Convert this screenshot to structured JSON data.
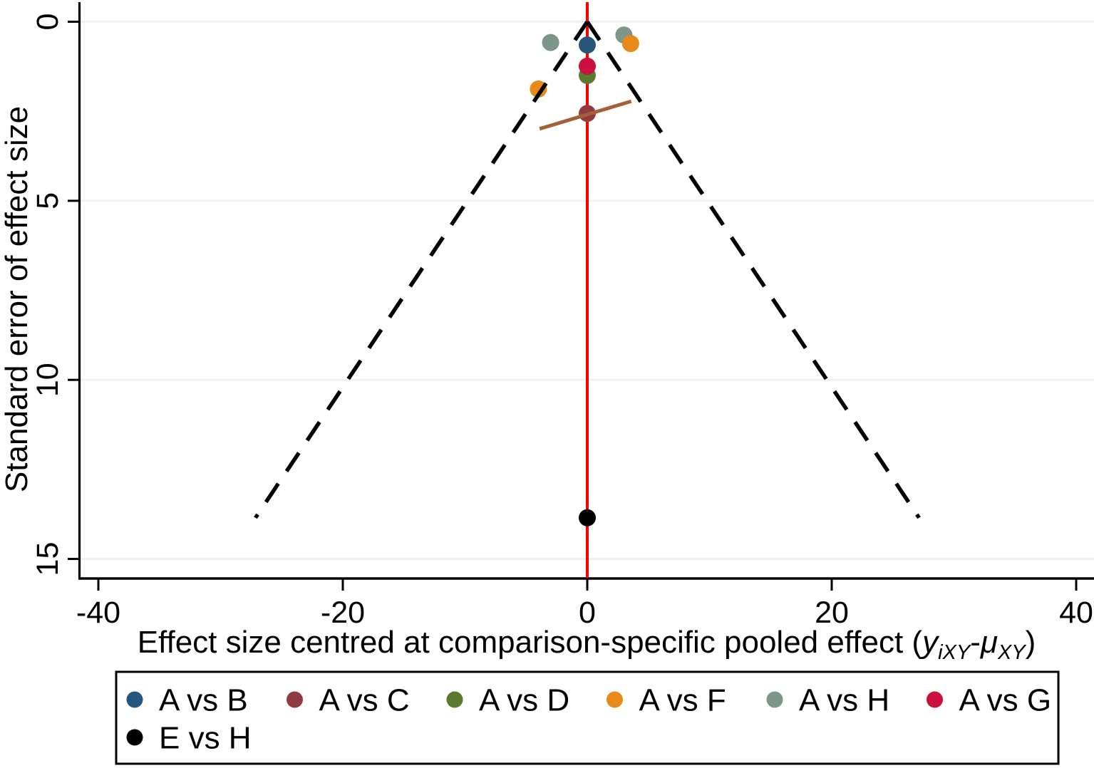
{
  "figure": {
    "kind": "comparison-adjusted funnel plot",
    "background": "#ffffff"
  },
  "chart_data": {
    "type": "scatter",
    "title": "",
    "ylabel": "Standard error of effect size",
    "xlabel_plain": "Effect size centred at comparison-specific pooled effect (yiXY-μXY)",
    "xlabel_parts": {
      "prefix": "Effect size centred at comparison-specific pooled effect (",
      "var1": "y",
      "sub1": "iXY",
      "op": "-",
      "var2": "μ",
      "sub2": "XY",
      "suffix": ")"
    },
    "x_ticks": [
      -40,
      -20,
      0,
      20,
      40
    ],
    "y_ticks": [
      0,
      5,
      10,
      15
    ],
    "xlim": [
      -41.5,
      41.5
    ],
    "ylim": [
      0,
      15.6
    ],
    "y_axis_reversed": true,
    "grid": "horizontal",
    "gridline_color": "#E9F1F3",
    "axis_color": "#000000",
    "series": [
      {
        "name": "A vs B",
        "color": "#26567C",
        "points": [
          {
            "x": 0,
            "se": 0.65
          }
        ]
      },
      {
        "name": "A vs C",
        "color": "#903B42",
        "points": [
          {
            "x": 0,
            "se": 2.56
          }
        ]
      },
      {
        "name": "A vs D",
        "color": "#5A7A30",
        "points": [
          {
            "x": 0,
            "se": 1.5
          }
        ]
      },
      {
        "name": "A vs F",
        "color": "#E8891A",
        "points": [
          {
            "x": -4.0,
            "se": 1.88
          },
          {
            "x": 3.55,
            "se": 0.61
          }
        ]
      },
      {
        "name": "A vs H",
        "color": "#7C968A",
        "points": [
          {
            "x": -3.0,
            "se": 0.58
          },
          {
            "x": 3.0,
            "se": 0.37
          }
        ]
      },
      {
        "name": "A vs G",
        "color": "#C9103E",
        "points": [
          {
            "x": 0,
            "se": 1.24
          }
        ]
      },
      {
        "name": "E vs H",
        "color": "#000000",
        "points": [
          {
            "x": 0,
            "se": 13.85
          }
        ]
      }
    ],
    "z_order": [
      [
        4,
        0
      ],
      [
        0,
        0
      ],
      [
        4,
        1
      ],
      [
        3,
        1
      ],
      [
        2,
        0
      ],
      [
        5,
        0
      ],
      [
        3,
        0
      ],
      [
        1,
        0
      ],
      [
        6,
        0
      ]
    ],
    "funnel": {
      "center_x": 0,
      "se_max": 13.85,
      "ci_multiplier": 1.96,
      "style": "dashed",
      "color": "#000000"
    },
    "center_line": {
      "x": 0,
      "color": "#FE0000"
    },
    "regression_line": {
      "x1": -3.9,
      "se1": 2.99,
      "x2": 3.6,
      "se2": 2.22,
      "color": "#A5603A"
    },
    "legend": {
      "position": "bottom",
      "rows": [
        [
          "A vs B",
          "A vs C",
          "A vs D",
          "A vs F",
          "A vs H",
          "A vs G"
        ],
        [
          "E vs H"
        ]
      ]
    }
  }
}
